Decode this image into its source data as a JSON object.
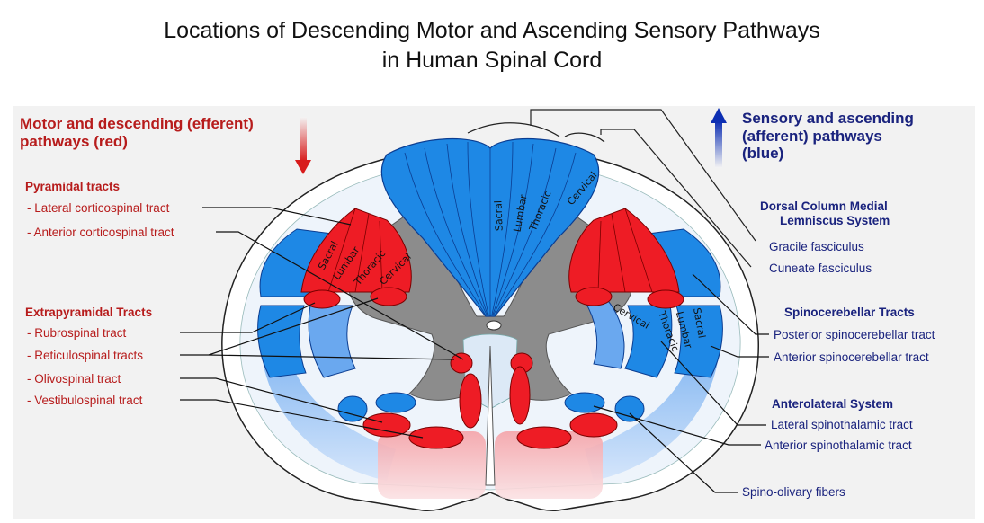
{
  "title_line1": "Locations of Descending Motor and Ascending Sensory Pathways",
  "title_line2": "in Human Spinal Cord",
  "motor": {
    "header_line1": "Motor and descending (efferent)",
    "header_line2": "pathways   (red)",
    "color": "#ee1c25",
    "pyramidal_title": "Pyramidal tracts",
    "lateral_cs": "- Lateral corticospinal tract",
    "anterior_cs": "- Anterior corticospinal tract",
    "extrapyramidal_title": "Extrapyramidal Tracts",
    "rubrospinal": "- Rubrospinal tract",
    "reticulospinal": "- Reticulospinal tracts",
    "olivospinal": "- Olivospinal tract",
    "vestibulospinal": "- Vestibulospinal tract"
  },
  "sensory": {
    "header_line1": "Sensory and ascending",
    "header_line2": "(afferent) pathways",
    "header_line3": "(blue)",
    "color": "#1e88e5",
    "dcml_line1": "Dorsal Column Medial",
    "dcml_line2": "Lemniscus System",
    "gracile": "Gracile fasciculus",
    "cuneate": "Cuneate fasciculus",
    "spinocerebellar_title": "Spinocerebellar Tracts",
    "posterior_sc": "Posterior spinocerebellar tract",
    "anterior_sc": "Anterior spinocerebellar tract",
    "anterolateral_title": "Anterolateral System",
    "lateral_st": "Lateral spinothalamic tract",
    "anterior_st": "Anterior spinothalamic tract",
    "spino_olivary": "Spino-olivary fibers"
  },
  "segments": {
    "sacral": "Sacral",
    "lumbar": "Lumbar",
    "thoracic": "Thoracic",
    "cervical": "Cervical"
  }
}
